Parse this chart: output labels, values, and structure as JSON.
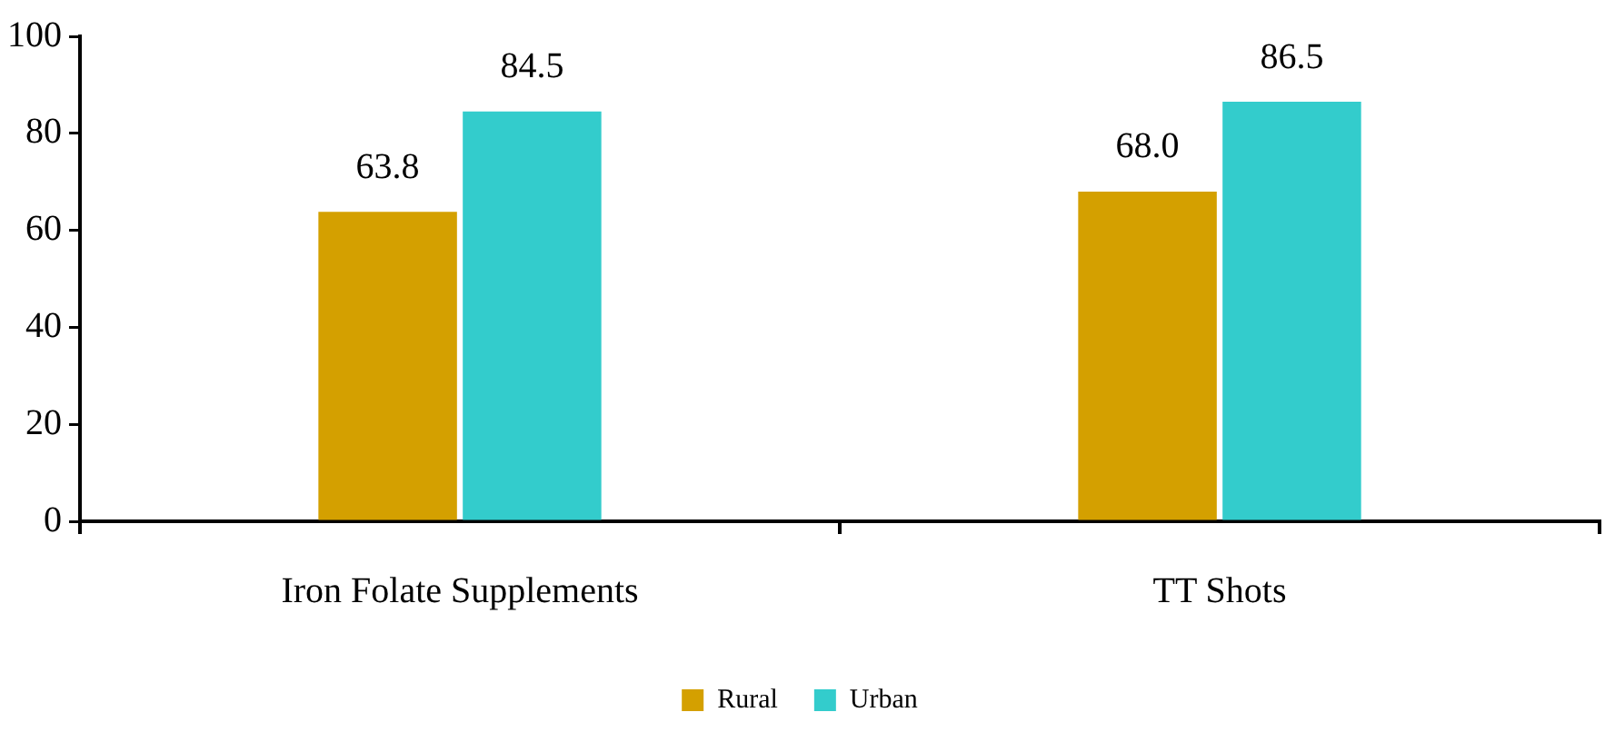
{
  "chart_data": {
    "type": "bar",
    "categories": [
      "Iron Folate Supplements",
      "TT Shots"
    ],
    "series": [
      {
        "name": "Rural",
        "color": "#d4a000",
        "values": [
          63.8,
          68.0
        ]
      },
      {
        "name": "Urban",
        "color": "#33cccc",
        "values": [
          84.5,
          86.5
        ]
      }
    ],
    "ylim": [
      0,
      100
    ],
    "yticks": [
      0,
      20,
      40,
      60,
      80,
      100
    ],
    "grid": false,
    "legend": "bottom",
    "value_labels": [
      [
        "63.8",
        "68.0"
      ],
      [
        "84.5",
        "86.5"
      ]
    ]
  }
}
